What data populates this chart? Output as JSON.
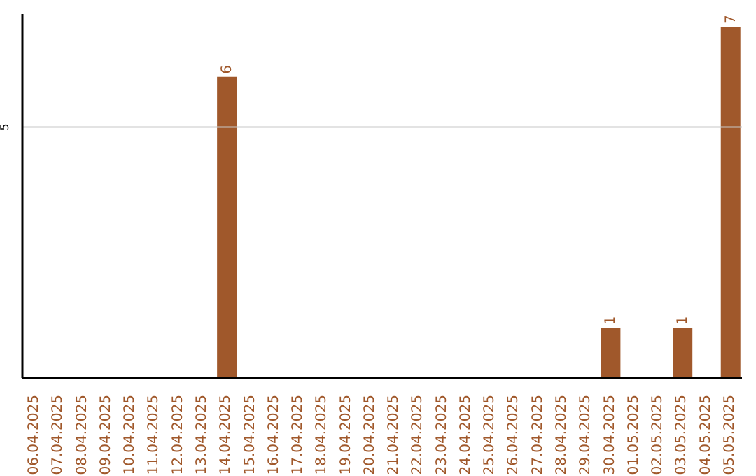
{
  "chart_data": {
    "type": "bar",
    "categories": [
      "06.04.2025",
      "07.04.2025",
      "08.04.2025",
      "09.04.2025",
      "10.04.2025",
      "11.04.2025",
      "12.04.2025",
      "13.04.2025",
      "14.04.2025",
      "15.04.2025",
      "16.04.2025",
      "17.04.2025",
      "18.04.2025",
      "19.04.2025",
      "20.04.2025",
      "21.04.2025",
      "22.04.2025",
      "23.04.2025",
      "24.04.2025",
      "25.04.2025",
      "26.04.2025",
      "27.04.2025",
      "28.04.2025",
      "29.04.2025",
      "30.04.2025",
      "01.05.2025",
      "02.05.2025",
      "03.05.2025",
      "04.05.2025",
      "05.05.2025"
    ],
    "values": [
      0,
      0,
      0,
      0,
      0,
      0,
      0,
      0,
      6,
      0,
      0,
      0,
      0,
      0,
      0,
      0,
      0,
      0,
      0,
      0,
      0,
      0,
      0,
      0,
      1,
      0,
      0,
      1,
      0,
      7
    ],
    "value_labels": [
      null,
      null,
      null,
      null,
      null,
      null,
      null,
      null,
      "6",
      null,
      null,
      null,
      null,
      null,
      null,
      null,
      null,
      null,
      null,
      null,
      null,
      null,
      null,
      null,
      "1",
      null,
      null,
      "1",
      null,
      "7"
    ],
    "color": "#a0582b",
    "ylim": [
      0,
      7.25
    ],
    "yticks": [
      5
    ],
    "grid": "y"
  }
}
